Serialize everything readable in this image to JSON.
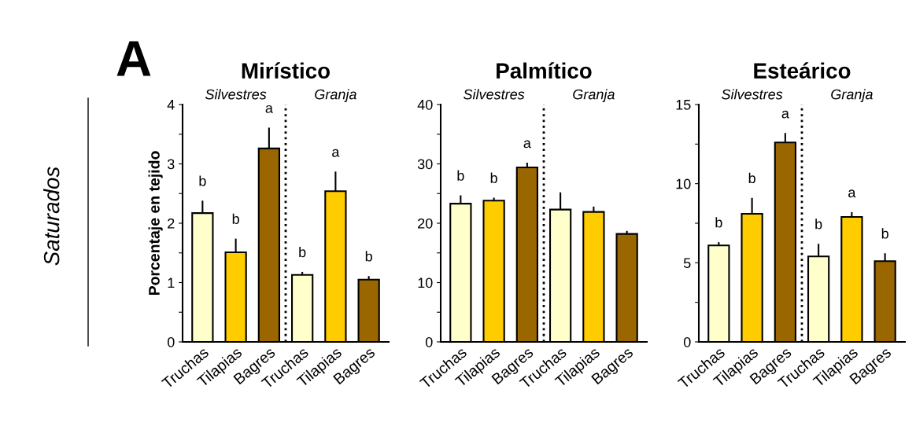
{
  "chart_data": [
    {
      "type": "bar",
      "title": "Mirístico",
      "ylabel": "Porcentaje en tejido",
      "categories": [
        "Truchas",
        "Tilapias",
        "Bagres",
        "Truchas",
        "Tilapias",
        "Bagres"
      ],
      "values": [
        2.17,
        1.51,
        3.26,
        1.13,
        2.54,
        1.05
      ],
      "errors": [
        0.21,
        0.23,
        0.35,
        0.05,
        0.33,
        0.06
      ],
      "colors": [
        "#ffffcc",
        "#ffcc00",
        "#996600",
        "#ffffcc",
        "#ffcc00",
        "#996600"
      ],
      "value_labels": [
        "b",
        "b",
        "a",
        "b",
        "a",
        "b"
      ],
      "ylim": [
        0,
        4
      ],
      "yticks": [
        0,
        {
          "value": 0.5,
          "label": null
        },
        1,
        {
          "value": 1.5,
          "label": null
        },
        2,
        {
          "value": 2.5,
          "label": null
        },
        3,
        {
          "value": 3.5,
          "label": null
        },
        4
      ],
      "annotations": [
        "Silvestres",
        "Granja",
        "A",
        "Saturados"
      ],
      "grid": false,
      "legend": false
    },
    {
      "type": "bar",
      "title": "Palmítico",
      "categories": [
        "Truchas",
        "Tilapias",
        "Bagres",
        "Truchas",
        "Tilapias",
        "Bagres"
      ],
      "values": [
        23.3,
        23.8,
        29.4,
        22.3,
        21.9,
        18.2
      ],
      "errors": [
        1.4,
        0.5,
        0.8,
        2.9,
        0.9,
        0.5
      ],
      "colors": [
        "#ffffcc",
        "#ffcc00",
        "#996600",
        "#ffffcc",
        "#ffcc00",
        "#996600"
      ],
      "value_labels": [
        "b",
        "b",
        "a",
        null,
        null,
        null
      ],
      "ylim": [
        0,
        40
      ],
      "yticks": [
        0,
        {
          "value": 5,
          "label": null
        },
        10,
        {
          "value": 15,
          "label": null
        },
        20,
        {
          "value": 25,
          "label": null
        },
        30,
        {
          "value": 35,
          "label": null
        },
        40
      ],
      "annotations": [
        "Silvestres",
        "Granja"
      ],
      "grid": false,
      "legend": false
    },
    {
      "type": "bar",
      "title": "Esteárico",
      "categories": [
        "Truchas",
        "Tilapias",
        "Bagres",
        "Truchas",
        "Tilapias",
        "Bagres"
      ],
      "values": [
        6.1,
        8.1,
        12.6,
        5.4,
        7.9,
        5.1
      ],
      "errors": [
        0.2,
        1.0,
        0.6,
        0.8,
        0.3,
        0.5
      ],
      "colors": [
        "#ffffcc",
        "#ffcc00",
        "#996600",
        "#ffffcc",
        "#ffcc00",
        "#996600"
      ],
      "value_labels": [
        "b",
        "b",
        "a",
        "b",
        "a",
        "b"
      ],
      "ylim": [
        0,
        15
      ],
      "yticks": [
        0,
        {
          "value": 2.5,
          "label": null
        },
        5,
        {
          "value": 7.5,
          "label": null
        },
        10,
        {
          "value": 12.5,
          "label": null
        },
        15
      ],
      "annotations": [
        "Silvestres",
        "Granja"
      ],
      "grid": false,
      "legend": false
    }
  ]
}
